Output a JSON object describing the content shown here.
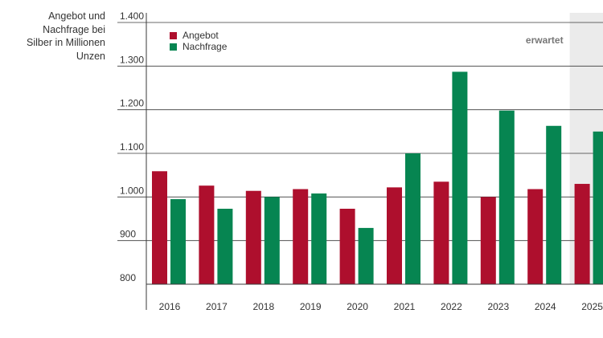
{
  "colors": {
    "angebot": "#ae0f2d",
    "nachfrage": "#068551",
    "grid": "#3a3a3a",
    "expected_band": "#ebebeb",
    "expected_text": "#7a7a7a"
  },
  "chart_data": {
    "type": "bar",
    "ylabel": "Angebot und Nachfrage bei Silber in Millionen Unzen",
    "categories": [
      "2016",
      "2017",
      "2018",
      "2019",
      "2020",
      "2021",
      "2022",
      "2023",
      "2024",
      "2025"
    ],
    "series": [
      {
        "name": "Angebot",
        "values": [
          1059,
          1026,
          1014,
          1018,
          973,
          1022,
          1035,
          1000,
          1018,
          1030
        ]
      },
      {
        "name": "Nachfrage",
        "values": [
          995,
          973,
          1000,
          1008,
          929,
          1100,
          1287,
          1198,
          1163,
          1150
        ]
      }
    ],
    "ylim": [
      800,
      1400
    ],
    "yticks": [
      "800",
      "900",
      "1.000",
      "1.100",
      "1.200",
      "1.300",
      "1.400"
    ],
    "ytick_values": [
      800,
      900,
      1000,
      1100,
      1200,
      1300,
      1400
    ],
    "grid": true,
    "legend": "top-left",
    "expected_label": "erwartet",
    "expected_categories": [
      "2025"
    ]
  }
}
